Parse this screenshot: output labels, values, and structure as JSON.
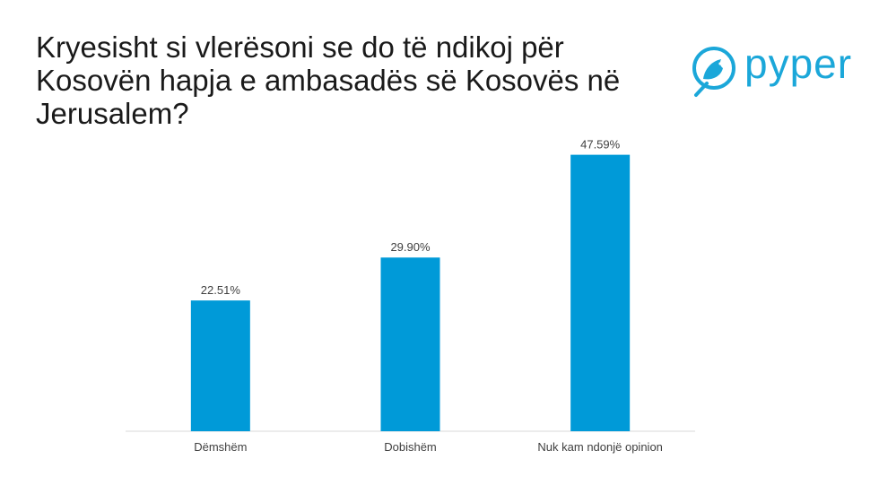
{
  "title": "Kryesisht si vlerësoni se do të ndikoj për Kosovën hapja e ambasadës së Kosovës në Jerusalem?",
  "logo": {
    "text": "pyper",
    "icon": "bird-icon",
    "color": "#1ba7d9"
  },
  "chart_data": {
    "type": "bar",
    "categories": [
      "Dëmshëm",
      "Dobishëm",
      "Nuk kam ndonjë opinion"
    ],
    "values": [
      22.51,
      29.9,
      47.59
    ],
    "value_labels": [
      "22.51%",
      "29.90%",
      "47.59%"
    ],
    "ylim": [
      0,
      50
    ],
    "xlabel": "",
    "ylabel": "",
    "grid": false,
    "bar_color": "#009ad8"
  }
}
